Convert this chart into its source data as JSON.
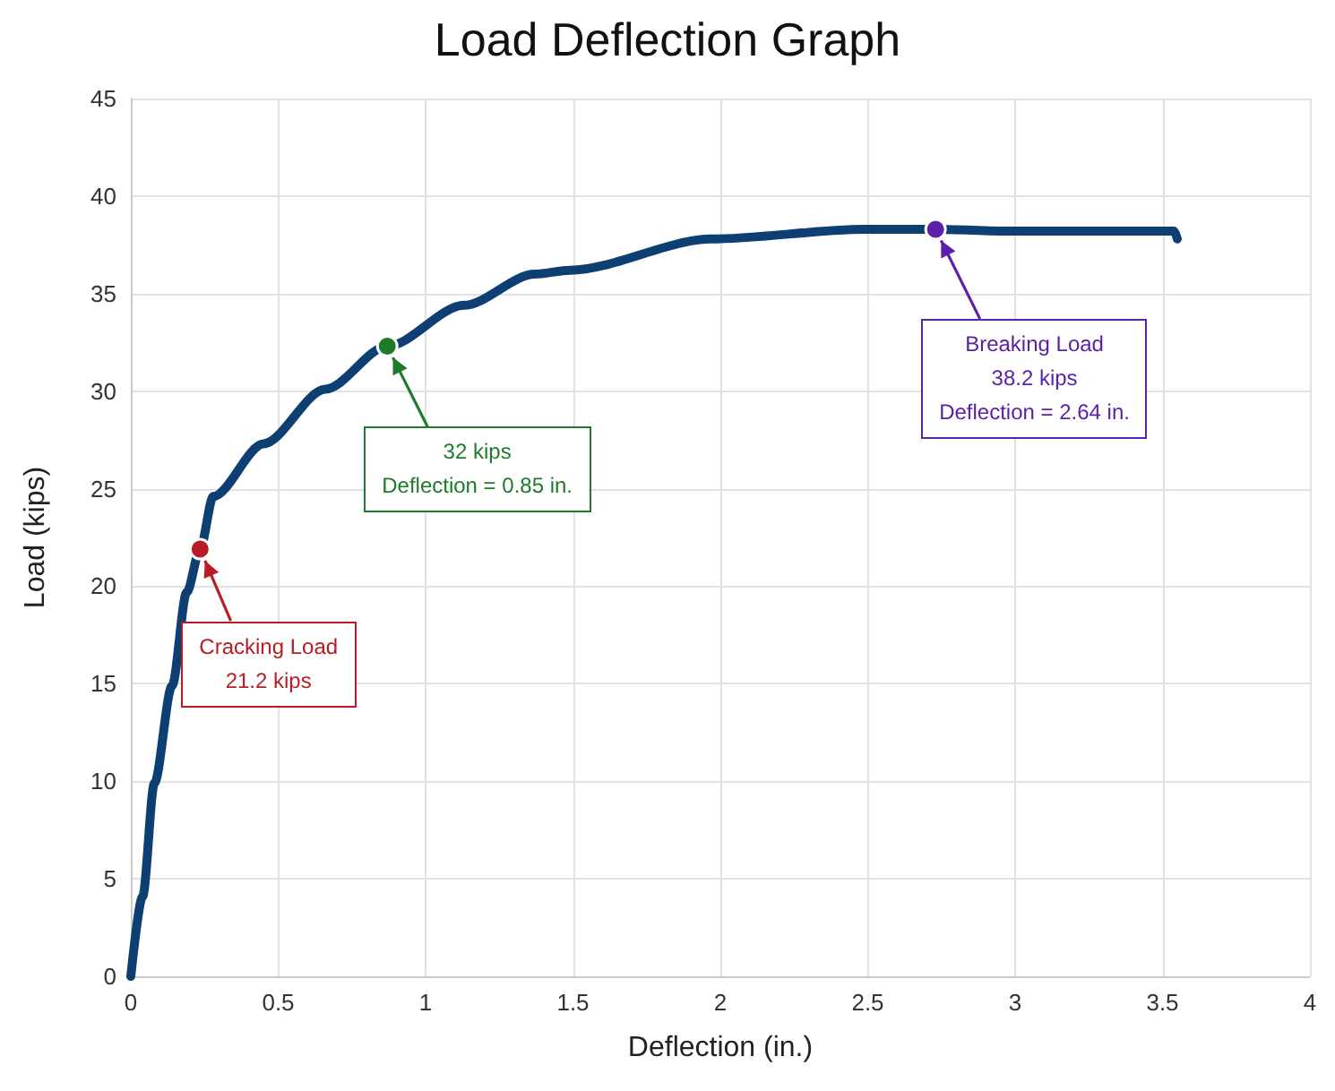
{
  "chart_data": {
    "type": "line",
    "title": "Load Deflection Graph",
    "xlabel": "Deflection (in.)",
    "ylabel": "Load (kips)",
    "x": [
      0,
      0.04,
      0.08,
      0.14,
      0.19,
      0.235,
      0.28,
      0.45,
      0.66,
      0.87,
      1.13,
      1.37,
      1.49,
      1.97,
      2.49,
      2.73,
      2.98,
      3.54,
      3.55
    ],
    "series": [
      {
        "color": "#0d3f73",
        "values": [
          0,
          4.1,
          9.9,
          14.9,
          19.7,
          21.9,
          24.6,
          27.3,
          30.1,
          32.3,
          34.4,
          36.0,
          36.2,
          37.8,
          38.3,
          38.3,
          38.2,
          38.2,
          37.8
        ]
      }
    ],
    "xlim": [
      0,
      4
    ],
    "xticks": [
      0,
      0.5,
      1,
      1.5,
      2,
      2.5,
      3,
      3.5,
      4
    ],
    "ylim": [
      0,
      45
    ],
    "yticks": [
      0,
      5,
      10,
      15,
      20,
      25,
      30,
      35,
      40,
      45
    ],
    "grid": true,
    "marker": "none",
    "line_style": "solid",
    "annotations": [
      {
        "text": "Cracking Load\n21.2 kips",
        "x": 0.235,
        "y": 21.9
      },
      {
        "text": "32 kips\nDeflection = 0.85 in.",
        "x": 0.87,
        "y": 32.3
      },
      {
        "text": "Breaking Load\n38.2 kips\nDeflection = 2.64 in.",
        "x": 2.73,
        "y": 38.3
      }
    ]
  }
}
